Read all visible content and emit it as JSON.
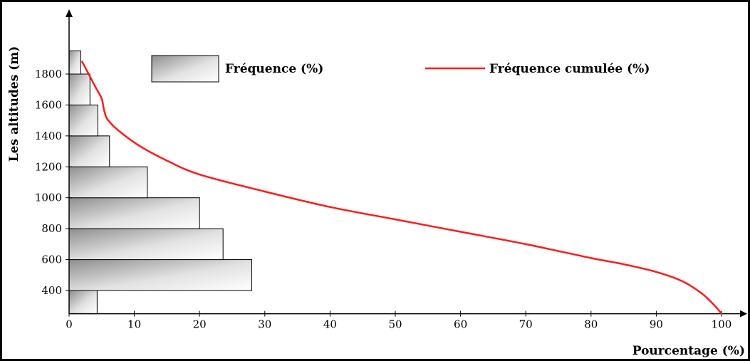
{
  "chart_data": {
    "type": "bar",
    "orientation": "horizontal",
    "title": "",
    "xlabel": "Pourcentage (%)",
    "ylabel": "Les altitudes (m)",
    "xlim": [
      0,
      100
    ],
    "ylim": [
      250,
      1950
    ],
    "xticks": [
      0,
      10,
      20,
      30,
      40,
      50,
      60,
      70,
      80,
      90,
      100
    ],
    "yticks": [
      400,
      600,
      800,
      1000,
      1200,
      1400,
      1600,
      1800
    ],
    "grid": false,
    "legend_position": "top",
    "series": [
      {
        "name": "Fréquence (%)",
        "type": "bar",
        "bins": [
          {
            "from": 250,
            "to": 400,
            "value": 4.3
          },
          {
            "from": 400,
            "to": 600,
            "value": 28.0
          },
          {
            "from": 600,
            "to": 800,
            "value": 23.6
          },
          {
            "from": 800,
            "to": 1000,
            "value": 20.0
          },
          {
            "from": 1000,
            "to": 1200,
            "value": 12.0
          },
          {
            "from": 1200,
            "to": 1400,
            "value": 6.2
          },
          {
            "from": 1400,
            "to": 1600,
            "value": 4.4
          },
          {
            "from": 1600,
            "to": 1800,
            "value": 3.2
          },
          {
            "from": 1800,
            "to": 1950,
            "value": 1.8
          }
        ]
      },
      {
        "name": "Fréquence cumulée (%)",
        "type": "line",
        "color": "#ff1a1a",
        "points": [
          {
            "x": 100,
            "y": 250
          },
          {
            "x": 99,
            "y": 300
          },
          {
            "x": 97,
            "y": 380
          },
          {
            "x": 94,
            "y": 460
          },
          {
            "x": 90,
            "y": 520
          },
          {
            "x": 85,
            "y": 570
          },
          {
            "x": 80,
            "y": 610
          },
          {
            "x": 70,
            "y": 700
          },
          {
            "x": 60,
            "y": 780
          },
          {
            "x": 50,
            "y": 860
          },
          {
            "x": 40,
            "y": 940
          },
          {
            "x": 30,
            "y": 1040
          },
          {
            "x": 20,
            "y": 1150
          },
          {
            "x": 15,
            "y": 1240
          },
          {
            "x": 11,
            "y": 1330
          },
          {
            "x": 8,
            "y": 1420
          },
          {
            "x": 6,
            "y": 1500
          },
          {
            "x": 5.4,
            "y": 1560
          },
          {
            "x": 5,
            "y": 1640
          },
          {
            "x": 4,
            "y": 1720
          },
          {
            "x": 2,
            "y": 1880
          }
        ]
      }
    ]
  }
}
